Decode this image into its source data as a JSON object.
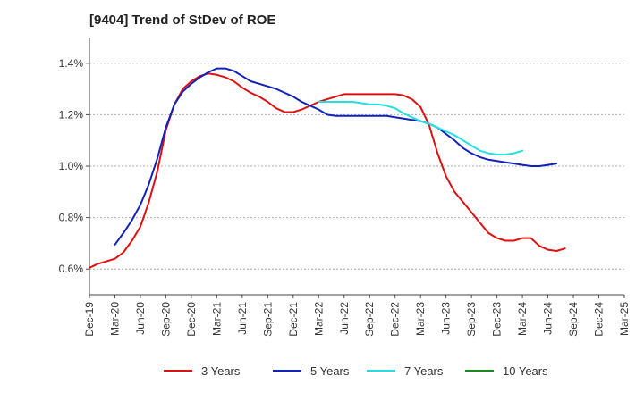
{
  "chart_data": {
    "type": "line",
    "title": "[9404]  Trend of StDev of ROE",
    "xlabel": "",
    "ylabel": "",
    "x_tick_labels": [
      "Dec-19",
      "Mar-20",
      "Jun-20",
      "Sep-20",
      "Dec-20",
      "Mar-21",
      "Jun-21",
      "Sep-21",
      "Dec-21",
      "Mar-22",
      "Jun-22",
      "Sep-22",
      "Dec-22",
      "Mar-23",
      "Jun-23",
      "Sep-23",
      "Dec-23",
      "Mar-24",
      "Jun-24",
      "Sep-24",
      "Dec-24",
      "Mar-25"
    ],
    "y_ticks": [
      0.6,
      0.8,
      1.0,
      1.2,
      1.4
    ],
    "y_tick_labels": [
      "0.6%",
      "0.8%",
      "1.0%",
      "1.2%",
      "1.4%"
    ],
    "ylim": [
      0.5,
      1.5
    ],
    "grid": "horizontal-dashed",
    "legend_position": "bottom",
    "series": [
      {
        "name": "3 Years",
        "color": "#dd1111",
        "start_index": 0,
        "values": [
          0.605,
          0.62,
          0.63,
          0.64,
          0.665,
          0.71,
          0.765,
          0.86,
          0.98,
          1.14,
          1.24,
          1.3,
          1.33,
          1.35,
          1.36,
          1.355,
          1.345,
          1.33,
          1.305,
          1.285,
          1.27,
          1.25,
          1.225,
          1.21,
          1.21,
          1.22,
          1.235,
          1.25,
          1.26,
          1.27,
          1.28,
          1.28,
          1.28,
          1.28,
          1.28,
          1.28,
          1.28,
          1.275,
          1.26,
          1.23,
          1.16,
          1.05,
          0.96,
          0.9,
          0.86,
          0.82,
          0.78,
          0.74,
          0.72,
          0.71,
          0.71,
          0.72,
          0.72,
          0.69,
          0.675,
          0.67,
          0.68
        ]
      },
      {
        "name": "5 Years",
        "color": "#1122bb",
        "start_index": 3,
        "values": [
          0.695,
          0.74,
          0.79,
          0.85,
          0.93,
          1.03,
          1.15,
          1.24,
          1.29,
          1.32,
          1.345,
          1.365,
          1.38,
          1.38,
          1.37,
          1.35,
          1.33,
          1.32,
          1.31,
          1.3,
          1.285,
          1.27,
          1.25,
          1.235,
          1.22,
          1.2,
          1.195,
          1.195,
          1.195,
          1.195,
          1.195,
          1.195,
          1.195,
          1.19,
          1.185,
          1.18,
          1.175,
          1.165,
          1.15,
          1.125,
          1.1,
          1.07,
          1.05,
          1.035,
          1.025,
          1.02,
          1.015,
          1.01,
          1.005,
          1.0,
          1.0,
          1.005,
          1.01
        ]
      },
      {
        "name": "7 Years",
        "color": "#22e0e0",
        "start_index": 27,
        "values": [
          1.25,
          1.25,
          1.25,
          1.25,
          1.25,
          1.245,
          1.24,
          1.24,
          1.235,
          1.225,
          1.205,
          1.19,
          1.175,
          1.165,
          1.15,
          1.135,
          1.12,
          1.1,
          1.08,
          1.06,
          1.05,
          1.045,
          1.045,
          1.05,
          1.06
        ]
      },
      {
        "name": "10 Years",
        "color": "#1a8a1a",
        "start_index": 0,
        "values": []
      }
    ]
  }
}
